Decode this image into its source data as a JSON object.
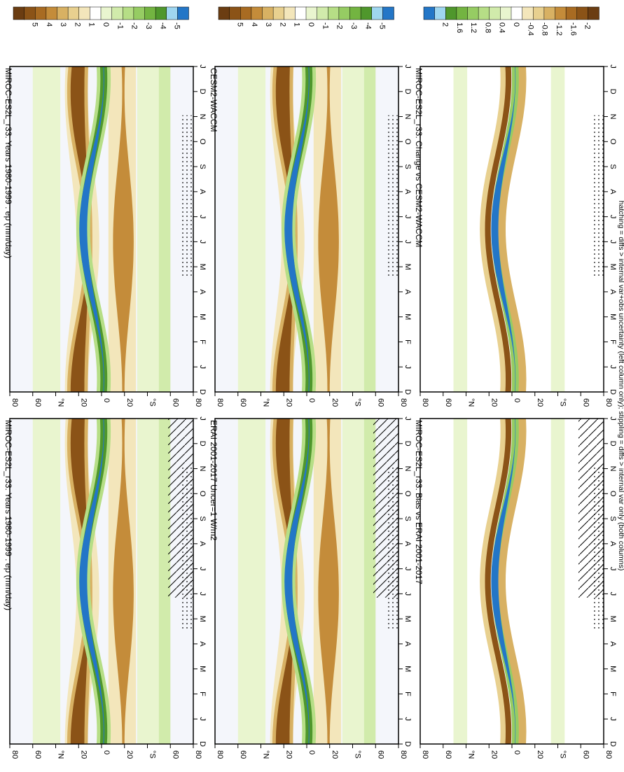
{
  "footnote": "hatching = diffs > internal var+obs uncertainty (left column only); stippling = diffs > internal var only (both columns)",
  "panel_titles": [
    "MIROC-ES2L_r33: Years 1980-1999 : ep (mm/day)",
    "MIROC-ES2L_r33: Years 1980-1999 : ep (mm/day)",
    "ERAI 2001-2017 Uncer=1 W/m2",
    "CESM2-WACCM",
    "MIROC-ES2L_r33: Bias vs ERAI 2001-2017",
    "MIROC-ES2L_r33: Change vs CESM2-WACCM"
  ],
  "chart_data": [
    {
      "type": "heatmap",
      "title": "MIROC-ES2L_r33: Years 1980-1999 : ep (mm/day)",
      "x": [
        "D",
        "J",
        "F",
        "M",
        "A",
        "M",
        "J",
        "J",
        "A",
        "S",
        "O",
        "N",
        "D",
        "J"
      ],
      "y": [
        "80",
        "60",
        "°N",
        "20",
        "0",
        "20",
        "°S",
        "60",
        "80"
      ],
      "colorbar_ticks": [
        "5",
        "4",
        "3",
        "2",
        "1",
        "0",
        "-1",
        "-2",
        "-3",
        "-4",
        "-5"
      ],
      "hatching": true,
      "stippling": true
    },
    {
      "type": "heatmap",
      "title": "MIROC-ES2L_r33: Years 1980-1999 : ep (mm/day)",
      "x": [
        "D",
        "J",
        "F",
        "M",
        "A",
        "M",
        "J",
        "J",
        "A",
        "S",
        "O",
        "N",
        "D",
        "J"
      ],
      "y": [
        "80",
        "60",
        "°N",
        "20",
        "0",
        "20",
        "°S",
        "60",
        "80"
      ],
      "colorbar_ticks": [
        "5",
        "4",
        "3",
        "2",
        "1",
        "0",
        "-1",
        "-2",
        "-3",
        "-4",
        "-5"
      ],
      "hatching": false,
      "stippling": true
    },
    {
      "type": "heatmap",
      "title": "ERAI 2001-2017 Uncer=1 W/m2",
      "x": [
        "D",
        "J",
        "F",
        "M",
        "A",
        "M",
        "J",
        "J",
        "A",
        "S",
        "O",
        "N",
        "D",
        "J"
      ],
      "y": [
        "80",
        "60",
        "°N",
        "20",
        "0",
        "20",
        "°S",
        "60",
        "80"
      ],
      "colorbar_ticks": [
        "5",
        "4",
        "3",
        "2",
        "1",
        "0",
        "-1",
        "-2",
        "-3",
        "-4",
        "-5"
      ],
      "hatching": true,
      "stippling": true
    },
    {
      "type": "heatmap",
      "title": "CESM2-WACCM",
      "x": [
        "D",
        "J",
        "F",
        "M",
        "A",
        "M",
        "J",
        "J",
        "A",
        "S",
        "O",
        "N",
        "D",
        "J"
      ],
      "y": [
        "80",
        "60",
        "°N",
        "20",
        "0",
        "20",
        "°S",
        "60",
        "80"
      ],
      "colorbar_ticks": [
        "5",
        "4",
        "3",
        "2",
        "1",
        "0",
        "-1",
        "-2",
        "-3",
        "-4",
        "-5"
      ],
      "hatching": false,
      "stippling": true
    },
    {
      "type": "heatmap",
      "title": "MIROC-ES2L_r33: Bias vs ERAI 2001-2017",
      "x": [
        "D",
        "J",
        "F",
        "M",
        "A",
        "M",
        "J",
        "J",
        "A",
        "S",
        "O",
        "N",
        "D",
        "J"
      ],
      "y": [
        "80",
        "60",
        "°N",
        "20",
        "0",
        "20",
        "°S",
        "60",
        "80"
      ],
      "colorbar_ticks": [
        "2",
        "1.6",
        "1.2",
        "0.8",
        "0.4",
        "0",
        "-0.4",
        "-0.8",
        "-1.2",
        "-1.6",
        "-2"
      ],
      "hatching": true,
      "stippling": true
    },
    {
      "type": "heatmap",
      "title": "MIROC-ES2L_r33: Change vs CESM2-WACCM",
      "x": [
        "D",
        "J",
        "F",
        "M",
        "A",
        "M",
        "J",
        "J",
        "A",
        "S",
        "O",
        "N",
        "D",
        "J"
      ],
      "y": [
        "80",
        "60",
        "°N",
        "20",
        "0",
        "20",
        "°S",
        "60",
        "80"
      ],
      "colorbar_ticks": [
        "2",
        "1.6",
        "1.2",
        "0.8",
        "0.4",
        "0",
        "-0.4",
        "-0.8",
        "-1.2",
        "-1.6",
        "-2"
      ],
      "hatching": false,
      "stippling": true
    }
  ],
  "colors": {
    "palette": [
      "#6b3d12",
      "#8b5317",
      "#a86b22",
      "#c48c3a",
      "#d8b163",
      "#e8d08f",
      "#f3e6bb",
      "#ffffff",
      "#e9f5cf",
      "#d1ebab",
      "#b6de86",
      "#96cc63",
      "#73b441",
      "#4f972c",
      "#9fd6f0",
      "#2376c7"
    ]
  }
}
